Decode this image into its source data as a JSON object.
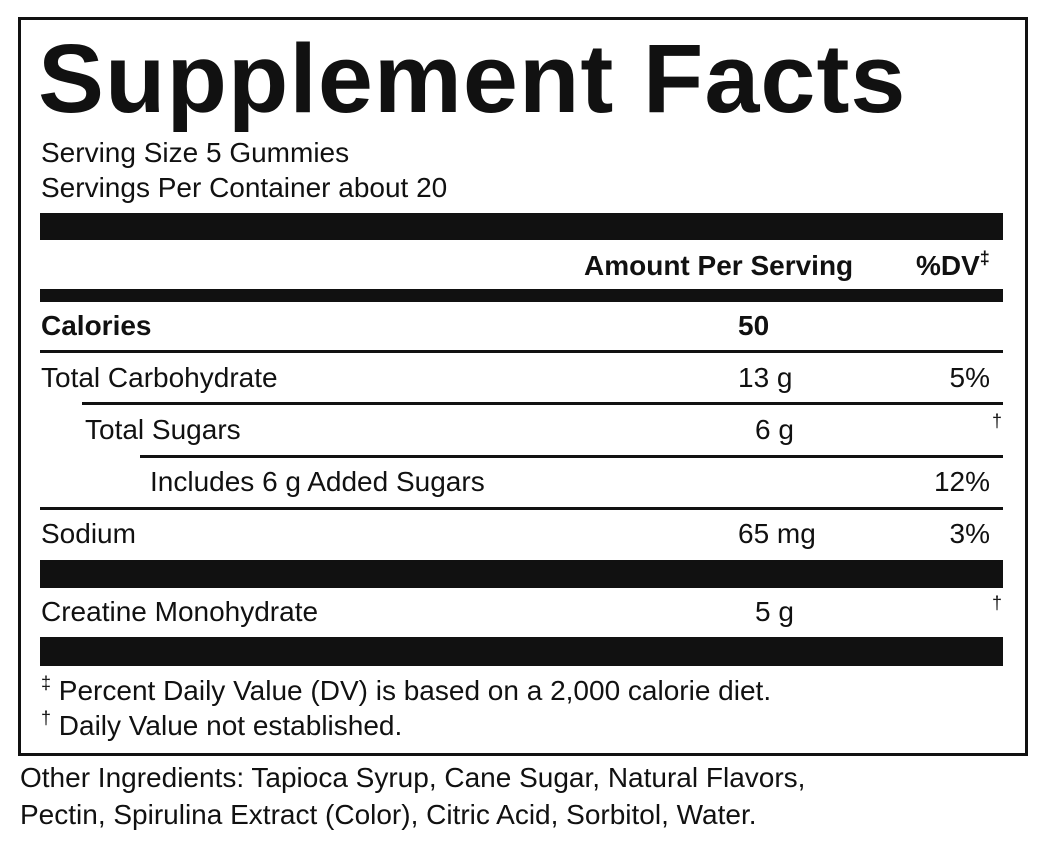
{
  "title": "Supplement Facts",
  "serving_size": "Serving Size 5 Gummies",
  "servings_per_container": "Servings Per Container about 20",
  "header": {
    "amount": "Amount Per Serving",
    "dv": "%DV",
    "dv_mark": "‡"
  },
  "rows": [
    {
      "name": "Calories",
      "amount": "50"
    },
    {
      "name": "Total Carbohydrate",
      "amount": "13 g",
      "dv": "5%"
    },
    {
      "name": "Total Sugars",
      "amount": "6 g",
      "dv": "†"
    },
    {
      "name": "Includes 6 g Added Sugars",
      "dv": "12%"
    },
    {
      "name": "Sodium",
      "amount": "65 mg",
      "dv": "3%"
    },
    {
      "name": "Creatine Monohydrate",
      "amount": "5 g",
      "dv": "†"
    }
  ],
  "footnotes": [
    {
      "mark": "‡",
      "text": "Percent Daily Value (DV) is based on a 2,000 calorie diet."
    },
    {
      "mark": "†",
      "text": "Daily Value not established."
    }
  ],
  "other_ingredients": [
    "Other Ingredients: Tapioca Syrup, Cane Sugar, Natural Flavors,",
    "Pectin, Spirulina Extract (Color), Citric Acid, Sorbitol, Water."
  ]
}
